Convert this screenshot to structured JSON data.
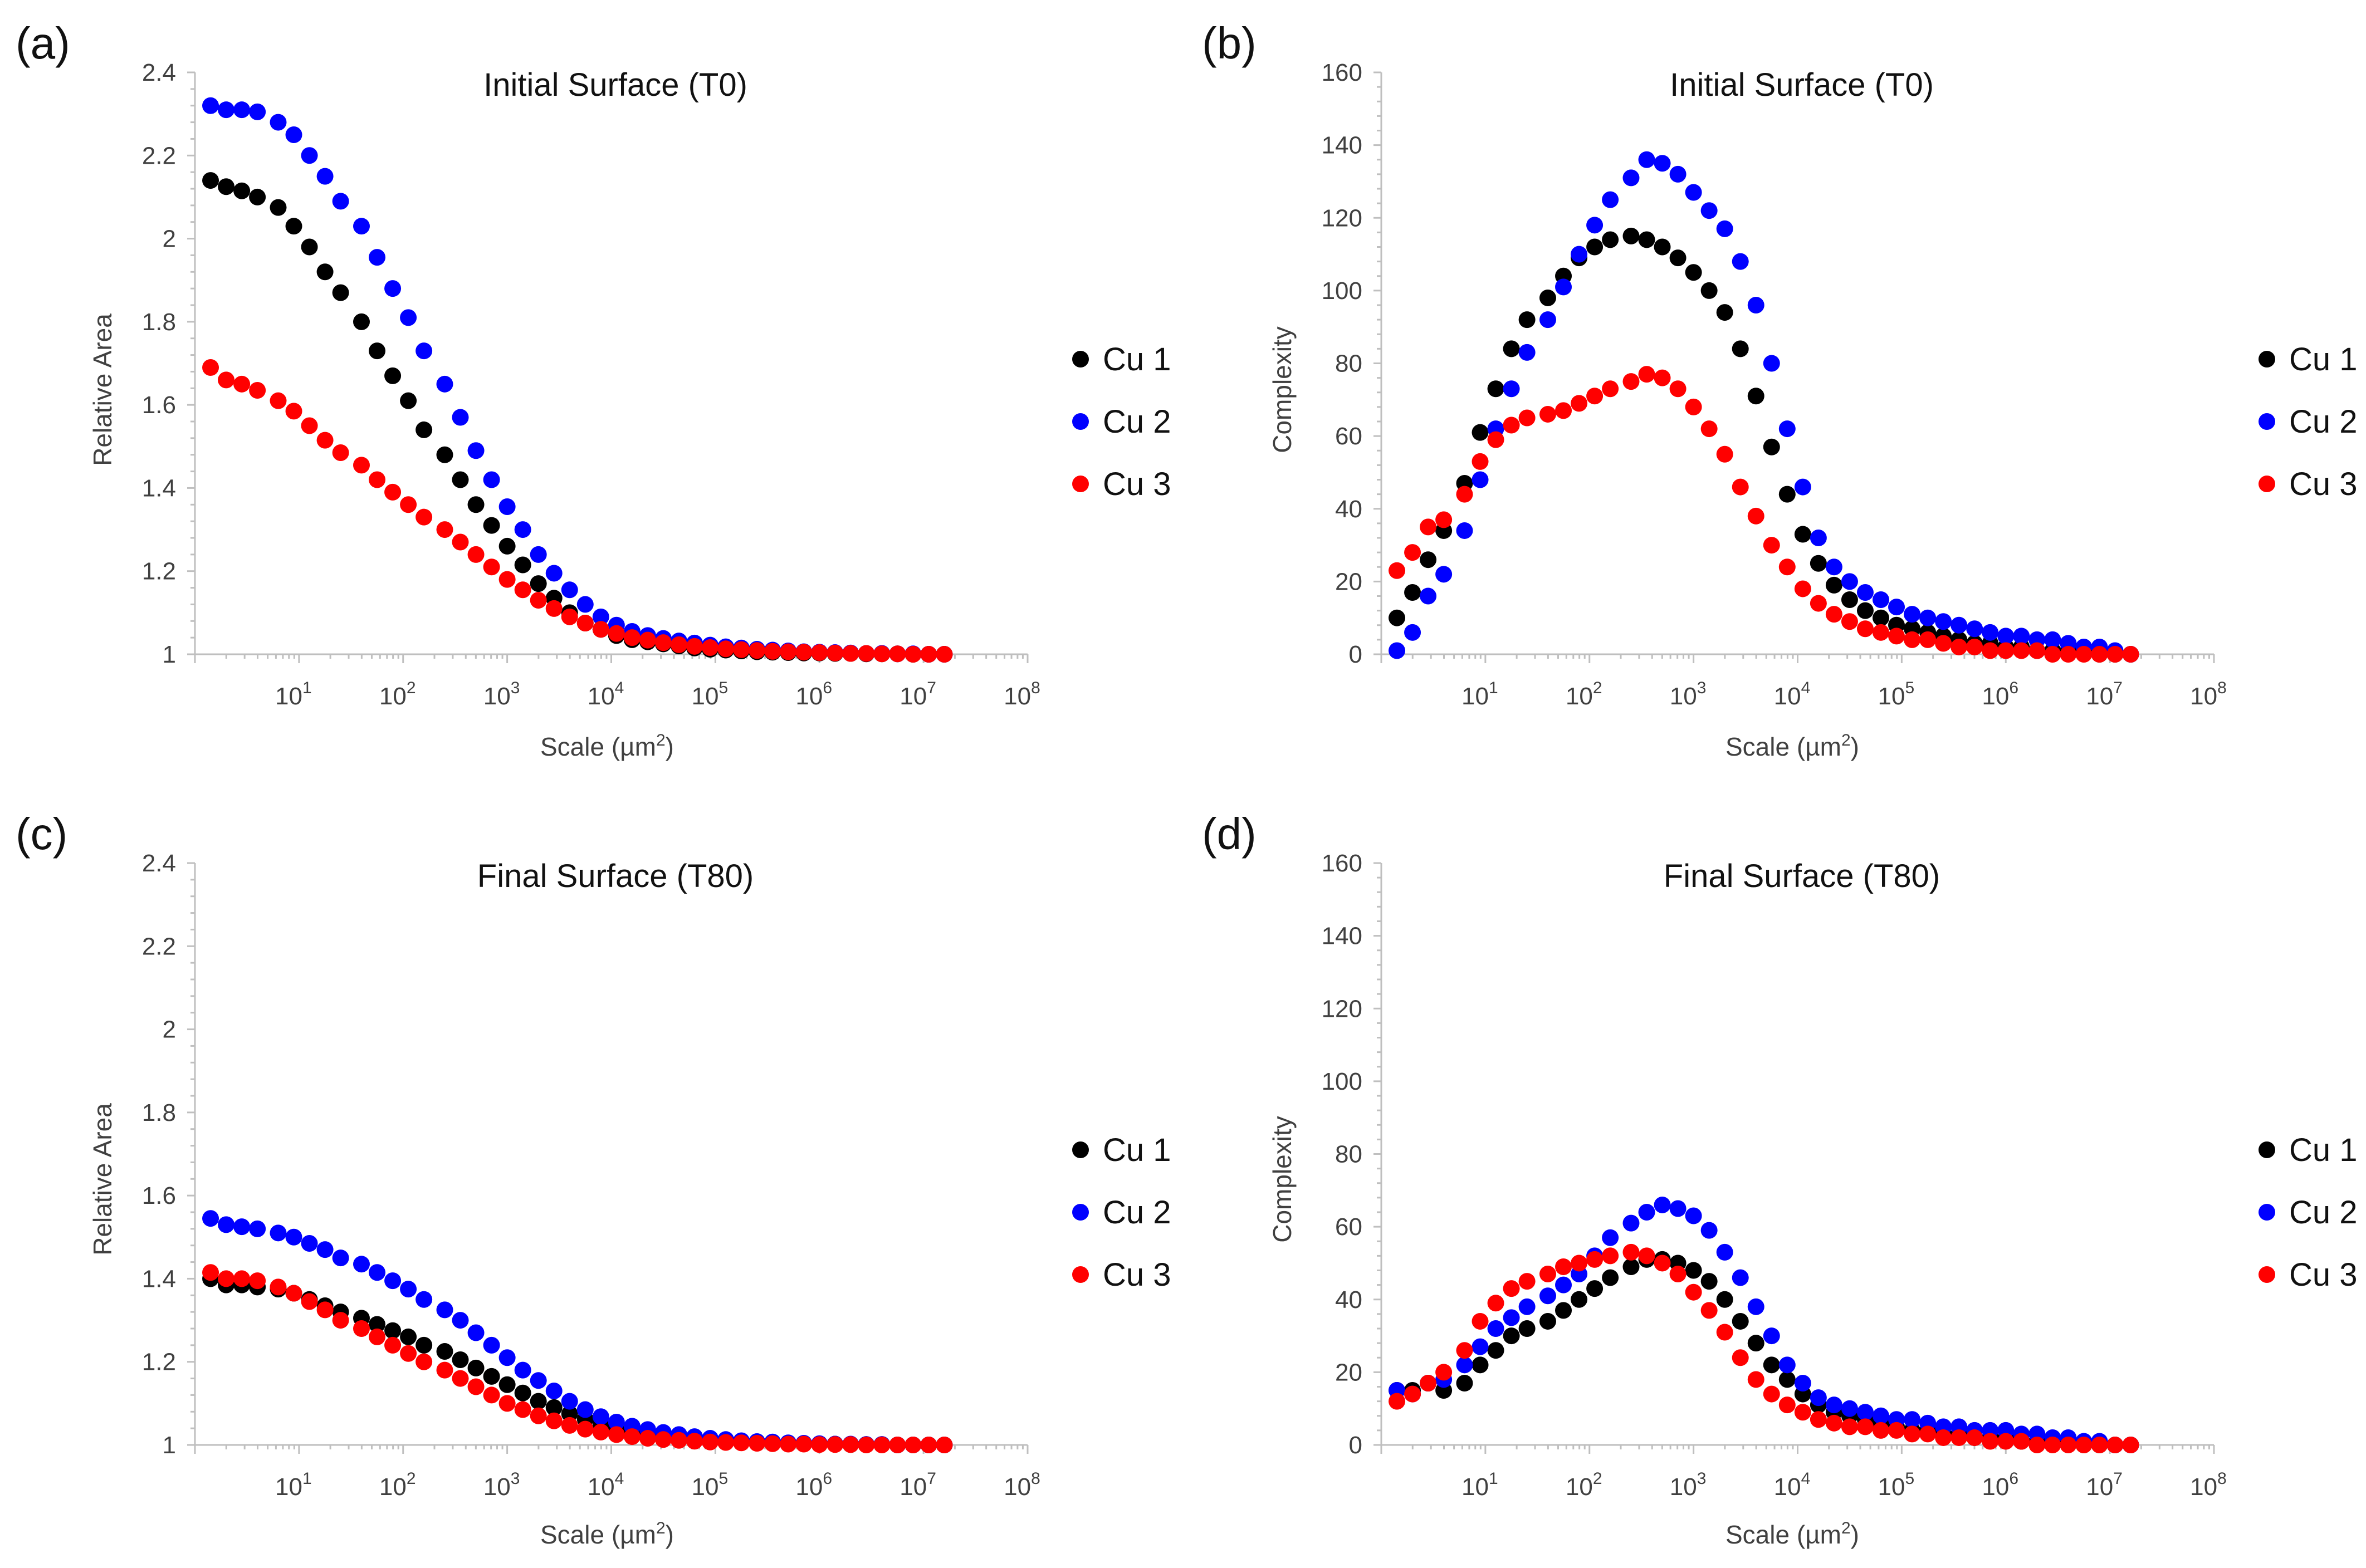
{
  "figure": {
    "panel_labels": [
      "(a)",
      "(b)",
      "(c)",
      "(d)"
    ]
  },
  "chart_data": [
    {
      "panel": "(a)",
      "type": "scatter",
      "title": "Initial Surface (T0)",
      "xlabel_main": "Scale (µm",
      "xlabel_sup": "2",
      "xlabel_end": ")",
      "ylabel": "Relative Area",
      "xscale": "log",
      "xlim_exp": [
        0,
        8
      ],
      "x_tick_exponents": [
        1,
        2,
        3,
        4,
        5,
        6,
        7,
        8
      ],
      "x_tick_base": "10",
      "ylim": [
        1,
        2.4
      ],
      "y_ticks": [
        "1",
        "1.2",
        "1.4",
        "1.6",
        "1.8",
        "2",
        "2.2",
        "2.4"
      ],
      "legend": [
        "Cu 1",
        "Cu 2",
        "Cu 3"
      ],
      "legend_position": "right",
      "colors": [
        "#000000",
        "#0000ff",
        "#ff0000"
      ],
      "x_log10": [
        0.15,
        0.3,
        0.45,
        0.6,
        0.8,
        0.95,
        1.1,
        1.25,
        1.4,
        1.6,
        1.75,
        1.9,
        2.05,
        2.2,
        2.4,
        2.55,
        2.7,
        2.85,
        3.0,
        3.15,
        3.3,
        3.45,
        3.6,
        3.75,
        3.9,
        4.05,
        4.2,
        4.35,
        4.5,
        4.65,
        4.8,
        4.95,
        5.1,
        5.25,
        5.4,
        5.55,
        5.7,
        5.85,
        6.0,
        6.15,
        6.3,
        6.45,
        6.6,
        6.75,
        6.9,
        7.05,
        7.2
      ],
      "series": [
        {
          "name": "Cu 1",
          "values": [
            2.14,
            2.125,
            2.115,
            2.1,
            2.075,
            2.03,
            1.98,
            1.92,
            1.87,
            1.8,
            1.73,
            1.67,
            1.61,
            1.54,
            1.48,
            1.42,
            1.36,
            1.31,
            1.26,
            1.215,
            1.17,
            1.135,
            1.1,
            1.075,
            1.06,
            1.045,
            1.035,
            1.03,
            1.025,
            1.02,
            1.015,
            1.012,
            1.01,
            1.008,
            1.006,
            1.005,
            1.004,
            1.003,
            1.003,
            1.002,
            1.002,
            1.001,
            1.001,
            1.001,
            1.0,
            1.0,
            1.0
          ]
        },
        {
          "name": "Cu 2",
          "values": [
            2.32,
            2.31,
            2.31,
            2.305,
            2.28,
            2.25,
            2.2,
            2.15,
            2.09,
            2.03,
            1.955,
            1.88,
            1.81,
            1.73,
            1.65,
            1.57,
            1.49,
            1.42,
            1.355,
            1.3,
            1.24,
            1.195,
            1.155,
            1.12,
            1.09,
            1.07,
            1.055,
            1.045,
            1.038,
            1.032,
            1.027,
            1.022,
            1.018,
            1.015,
            1.012,
            1.01,
            1.008,
            1.006,
            1.005,
            1.004,
            1.003,
            1.002,
            1.002,
            1.001,
            1.001,
            1.0,
            1.0
          ]
        },
        {
          "name": "Cu 3",
          "values": [
            1.69,
            1.66,
            1.65,
            1.635,
            1.61,
            1.585,
            1.55,
            1.515,
            1.485,
            1.455,
            1.42,
            1.39,
            1.36,
            1.33,
            1.3,
            1.27,
            1.24,
            1.21,
            1.18,
            1.155,
            1.13,
            1.11,
            1.09,
            1.075,
            1.06,
            1.05,
            1.04,
            1.034,
            1.028,
            1.023,
            1.019,
            1.016,
            1.013,
            1.011,
            1.009,
            1.007,
            1.006,
            1.005,
            1.004,
            1.003,
            1.002,
            1.002,
            1.001,
            1.001,
            1.0,
            1.0,
            1.0
          ]
        }
      ]
    },
    {
      "panel": "(b)",
      "type": "scatter",
      "title": "Initial Surface (T0)",
      "xlabel_main": "Scale (µm",
      "xlabel_sup": "2",
      "xlabel_end": ")",
      "ylabel": "Complexity",
      "xscale": "log",
      "xlim_exp": [
        0,
        8
      ],
      "x_tick_exponents": [
        1,
        2,
        3,
        4,
        5,
        6,
        7,
        8
      ],
      "x_tick_base": "10",
      "ylim": [
        0,
        160
      ],
      "y_ticks": [
        "0",
        "20",
        "40",
        "60",
        "80",
        "100",
        "120",
        "140",
        "160"
      ],
      "legend": [
        "Cu 1",
        "Cu 2",
        "Cu 3"
      ],
      "legend_position": "right",
      "colors": [
        "#000000",
        "#0000ff",
        "#ff0000"
      ],
      "x_log10": [
        0.15,
        0.3,
        0.45,
        0.6,
        0.8,
        0.95,
        1.1,
        1.25,
        1.4,
        1.6,
        1.75,
        1.9,
        2.05,
        2.2,
        2.4,
        2.55,
        2.7,
        2.85,
        3.0,
        3.15,
        3.3,
        3.45,
        3.6,
        3.75,
        3.9,
        4.05,
        4.2,
        4.35,
        4.5,
        4.65,
        4.8,
        4.95,
        5.1,
        5.25,
        5.4,
        5.55,
        5.7,
        5.85,
        6.0,
        6.15,
        6.3,
        6.45,
        6.6,
        6.75,
        6.9,
        7.05,
        7.2
      ],
      "series": [
        {
          "name": "Cu 1",
          "values": [
            10,
            17,
            26,
            34,
            47,
            61,
            73,
            84,
            92,
            98,
            104,
            109,
            112,
            114,
            115,
            114,
            112,
            109,
            105,
            100,
            94,
            84,
            71,
            57,
            44,
            33,
            25,
            19,
            15,
            12,
            10,
            8,
            7,
            6,
            5,
            4,
            3,
            3,
            2,
            2,
            1,
            1,
            1,
            1,
            0,
            0,
            0
          ]
        },
        {
          "name": "Cu 2",
          "values": [
            1,
            6,
            16,
            22,
            34,
            48,
            62,
            73,
            83,
            92,
            101,
            110,
            118,
            125,
            131,
            136,
            135,
            132,
            127,
            122,
            117,
            108,
            96,
            80,
            62,
            46,
            32,
            24,
            20,
            17,
            15,
            13,
            11,
            10,
            9,
            8,
            7,
            6,
            5,
            5,
            4,
            4,
            3,
            2,
            2,
            1,
            0
          ]
        },
        {
          "name": "Cu 3",
          "values": [
            23,
            28,
            35,
            37,
            44,
            53,
            59,
            63,
            65,
            66,
            67,
            69,
            71,
            73,
            75,
            77,
            76,
            73,
            68,
            62,
            55,
            46,
            38,
            30,
            24,
            18,
            14,
            11,
            9,
            7,
            6,
            5,
            4,
            4,
            3,
            2,
            2,
            1,
            1,
            1,
            1,
            0,
            0,
            0,
            0,
            0,
            0
          ]
        }
      ]
    },
    {
      "panel": "(c)",
      "type": "scatter",
      "title": "Final Surface (T80)",
      "xlabel_main": "Scale (µm",
      "xlabel_sup": "2",
      "xlabel_end": ")",
      "ylabel": "Relative Area",
      "xscale": "log",
      "xlim_exp": [
        0,
        8
      ],
      "x_tick_exponents": [
        1,
        2,
        3,
        4,
        5,
        6,
        7,
        8
      ],
      "x_tick_base": "10",
      "ylim": [
        1,
        2.4
      ],
      "y_ticks": [
        "1",
        "1.2",
        "1.4",
        "1.6",
        "1.8",
        "2",
        "2.2",
        "2.4"
      ],
      "legend": [
        "Cu 1",
        "Cu 2",
        "Cu 3"
      ],
      "legend_position": "right",
      "colors": [
        "#000000",
        "#0000ff",
        "#ff0000"
      ],
      "x_log10": [
        0.15,
        0.3,
        0.45,
        0.6,
        0.8,
        0.95,
        1.1,
        1.25,
        1.4,
        1.6,
        1.75,
        1.9,
        2.05,
        2.2,
        2.4,
        2.55,
        2.7,
        2.85,
        3.0,
        3.15,
        3.3,
        3.45,
        3.6,
        3.75,
        3.9,
        4.05,
        4.2,
        4.35,
        4.5,
        4.65,
        4.8,
        4.95,
        5.1,
        5.25,
        5.4,
        5.55,
        5.7,
        5.85,
        6.0,
        6.15,
        6.3,
        6.45,
        6.6,
        6.75,
        6.9,
        7.05,
        7.2
      ],
      "series": [
        {
          "name": "Cu 1",
          "values": [
            1.4,
            1.385,
            1.385,
            1.38,
            1.375,
            1.365,
            1.35,
            1.335,
            1.32,
            1.305,
            1.29,
            1.275,
            1.26,
            1.24,
            1.225,
            1.205,
            1.185,
            1.165,
            1.145,
            1.125,
            1.105,
            1.09,
            1.075,
            1.062,
            1.05,
            1.042,
            1.035,
            1.028,
            1.023,
            1.018,
            1.015,
            1.012,
            1.009,
            1.007,
            1.006,
            1.005,
            1.004,
            1.003,
            1.002,
            1.002,
            1.001,
            1.001,
            1.001,
            1.0,
            1.0,
            1.0,
            1.0
          ]
        },
        {
          "name": "Cu 2",
          "values": [
            1.545,
            1.53,
            1.525,
            1.52,
            1.51,
            1.5,
            1.485,
            1.47,
            1.45,
            1.435,
            1.415,
            1.395,
            1.375,
            1.35,
            1.325,
            1.3,
            1.27,
            1.24,
            1.21,
            1.18,
            1.155,
            1.13,
            1.105,
            1.085,
            1.068,
            1.055,
            1.045,
            1.037,
            1.03,
            1.025,
            1.02,
            1.016,
            1.013,
            1.01,
            1.008,
            1.007,
            1.005,
            1.004,
            1.003,
            1.002,
            1.002,
            1.001,
            1.001,
            1.0,
            1.0,
            1.0,
            1.0
          ]
        },
        {
          "name": "Cu 3",
          "values": [
            1.415,
            1.4,
            1.4,
            1.395,
            1.38,
            1.365,
            1.345,
            1.325,
            1.3,
            1.28,
            1.26,
            1.24,
            1.22,
            1.2,
            1.18,
            1.16,
            1.14,
            1.12,
            1.1,
            1.085,
            1.07,
            1.058,
            1.047,
            1.038,
            1.031,
            1.025,
            1.02,
            1.016,
            1.013,
            1.011,
            1.009,
            1.007,
            1.006,
            1.005,
            1.004,
            1.003,
            1.002,
            1.002,
            1.001,
            1.001,
            1.001,
            1.0,
            1.0,
            1.0,
            1.0,
            1.0,
            1.0
          ]
        }
      ]
    },
    {
      "panel": "(d)",
      "type": "scatter",
      "title": "Final Surface (T80)",
      "xlabel_main": "Scale (µm",
      "xlabel_sup": "2",
      "xlabel_end": ")",
      "ylabel": "Complexity",
      "xscale": "log",
      "xlim_exp": [
        0,
        8
      ],
      "x_tick_exponents": [
        1,
        2,
        3,
        4,
        5,
        6,
        7,
        8
      ],
      "x_tick_base": "10",
      "ylim": [
        0,
        160
      ],
      "y_ticks": [
        "0",
        "20",
        "40",
        "60",
        "80",
        "100",
        "120",
        "140",
        "160"
      ],
      "legend": [
        "Cu 1",
        "Cu 2",
        "Cu 3"
      ],
      "legend_position": "right",
      "colors": [
        "#000000",
        "#0000ff",
        "#ff0000"
      ],
      "x_log10": [
        0.15,
        0.3,
        0.45,
        0.6,
        0.8,
        0.95,
        1.1,
        1.25,
        1.4,
        1.6,
        1.75,
        1.9,
        2.05,
        2.2,
        2.4,
        2.55,
        2.7,
        2.85,
        3.0,
        3.15,
        3.3,
        3.45,
        3.6,
        3.75,
        3.9,
        4.05,
        4.2,
        4.35,
        4.5,
        4.65,
        4.8,
        4.95,
        5.1,
        5.25,
        5.4,
        5.55,
        5.7,
        5.85,
        6.0,
        6.15,
        6.3,
        6.45,
        6.6,
        6.75,
        6.9,
        7.05,
        7.2
      ],
      "series": [
        {
          "name": "Cu 1",
          "values": [
            15,
            15,
            17,
            15,
            17,
            22,
            26,
            30,
            32,
            34,
            37,
            40,
            43,
            46,
            49,
            51,
            51,
            50,
            48,
            45,
            40,
            34,
            28,
            22,
            18,
            14,
            11,
            9,
            8,
            7,
            6,
            5,
            4,
            4,
            3,
            3,
            2,
            2,
            2,
            1,
            1,
            1,
            1,
            0,
            0,
            0,
            0
          ]
        },
        {
          "name": "Cu 2",
          "values": [
            15,
            14,
            17,
            18,
            22,
            27,
            32,
            35,
            38,
            41,
            44,
            47,
            52,
            57,
            61,
            64,
            66,
            65,
            63,
            59,
            53,
            46,
            38,
            30,
            22,
            17,
            13,
            11,
            10,
            9,
            8,
            7,
            7,
            6,
            5,
            5,
            4,
            4,
            4,
            3,
            3,
            2,
            2,
            1,
            1,
            0,
            0
          ]
        },
        {
          "name": "Cu 3",
          "values": [
            12,
            14,
            17,
            20,
            26,
            34,
            39,
            43,
            45,
            47,
            49,
            50,
            51,
            52,
            53,
            52,
            50,
            47,
            42,
            37,
            31,
            24,
            18,
            14,
            11,
            9,
            7,
            6,
            5,
            5,
            4,
            4,
            3,
            3,
            2,
            2,
            2,
            1,
            1,
            1,
            0,
            0,
            0,
            0,
            0,
            0,
            0
          ]
        }
      ]
    }
  ]
}
